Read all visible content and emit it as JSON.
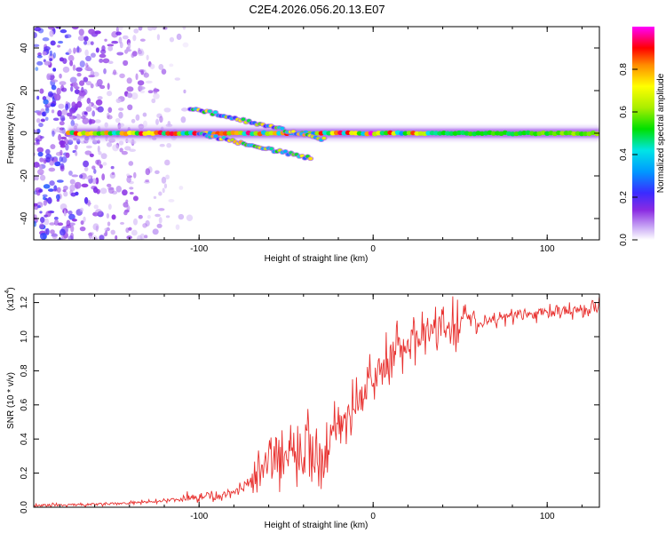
{
  "figure_title": "C2E4.2026.056.20.13.E07",
  "colors": {
    "snr_line": "#e8302e",
    "noise_dots": "#9a5cf0",
    "background": "#ffffff"
  },
  "chart_data": [
    {
      "type": "heatmap",
      "name": "spectrogram",
      "title": "",
      "xlabel": "Height of straight line (km)",
      "ylabel": "Frequency (Hz)",
      "xlim": [
        -195,
        130
      ],
      "ylim": [
        -50,
        50
      ],
      "x_ticks": [
        -100,
        0,
        100
      ],
      "x_tick_labels": [
        "-100",
        "0",
        "100"
      ],
      "y_ticks": [
        -40,
        -20,
        0,
        20,
        40
      ],
      "y_tick_labels": [
        "-40",
        "-20",
        "0",
        "20",
        "40"
      ],
      "colorbar": {
        "label": "Normalized spectral amplitude",
        "range": [
          0,
          1
        ],
        "ticks": [
          0.0,
          0.2,
          0.4,
          0.6,
          0.8
        ],
        "tick_labels": [
          "0.0",
          "0.2",
          "0.4",
          "0.6",
          "0.8"
        ],
        "colormap": [
          "#ffffff",
          "#c9a8f5",
          "#8a2be2",
          "#3b2bff",
          "#0099ff",
          "#00e5e5",
          "#00e000",
          "#aaee00",
          "#ffff00",
          "#ff8c00",
          "#ff0000",
          "#ff00ff"
        ]
      },
      "features": [
        {
          "name": "main_band",
          "x_range": [
            -175,
            130
          ],
          "frequency_hz": 0,
          "peak_amplitude": 1.0
        },
        {
          "name": "upper_branch",
          "x_range": [
            -105,
            -28
          ],
          "frequency_start_hz": 12,
          "frequency_end_hz": -3
        },
        {
          "name": "lower_branch",
          "x_range": [
            -100,
            -35
          ],
          "frequency_start_hz": 0,
          "frequency_end_hz": -12
        },
        {
          "name": "noise_region",
          "x_range": [
            -195,
            -105
          ],
          "frequency_range_hz": [
            -50,
            50
          ],
          "amplitude": 0.2
        }
      ]
    },
    {
      "type": "line",
      "name": "snr",
      "title": "",
      "xlabel": "Height of straight line (km)",
      "ylabel": "SNR (10 * v/v)",
      "scale_note": "(x10",
      "scale_exponent": "4",
      "scale_close": ")",
      "xlim": [
        -195,
        130
      ],
      "ylim": [
        0,
        1.25
      ],
      "x_ticks": [
        -100,
        0,
        100
      ],
      "x_tick_labels": [
        "-100",
        "0",
        "100"
      ],
      "y_ticks": [
        0.0,
        0.2,
        0.4,
        0.6,
        0.8,
        1.0,
        1.2
      ],
      "y_tick_labels": [
        "0.0",
        "0.2",
        "0.4",
        "0.6",
        "0.8",
        "1.0",
        "1.2"
      ],
      "series": [
        {
          "name": "SNR",
          "x": [
            -195,
            -180,
            -165,
            -150,
            -140,
            -130,
            -120,
            -110,
            -105,
            -95,
            -90,
            -85,
            -80,
            -75,
            -70,
            -65,
            -60,
            -55,
            -50,
            -45,
            -40,
            -35,
            -30,
            -28,
            -25,
            -22,
            -20,
            -15,
            -10,
            -5,
            0,
            5,
            10,
            15,
            20,
            25,
            30,
            35,
            40,
            45,
            50,
            52,
            55,
            58,
            60,
            65,
            70,
            75,
            80,
            90,
            100,
            110,
            120,
            130
          ],
          "values": [
            0.01,
            0.012,
            0.015,
            0.02,
            0.025,
            0.03,
            0.04,
            0.05,
            0.06,
            0.07,
            0.06,
            0.07,
            0.09,
            0.12,
            0.17,
            0.22,
            0.28,
            0.33,
            0.36,
            0.38,
            0.37,
            0.35,
            0.32,
            0.25,
            0.4,
            0.46,
            0.5,
            0.55,
            0.6,
            0.68,
            0.76,
            0.82,
            0.88,
            0.94,
            0.98,
            1.01,
            1.03,
            1.04,
            1.05,
            1.06,
            1.07,
            1.17,
            1.12,
            1.1,
            1.06,
            1.09,
            1.1,
            1.11,
            1.12,
            1.13,
            1.14,
            1.15,
            1.16,
            1.18
          ]
        }
      ]
    }
  ]
}
